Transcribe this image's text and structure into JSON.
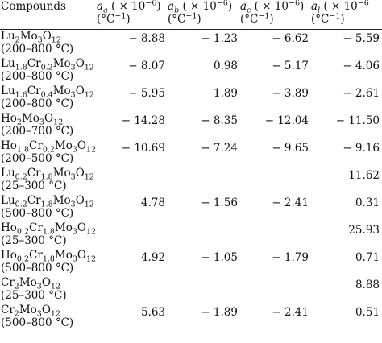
{
  "headers": [
    {
      "line1": "Compounds",
      "line2": ""
    },
    {
      "line1": "a",
      "sub": "a",
      "rest": " ( × 10",
      "exp": "−6",
      "close": ")",
      "line2": "(°C",
      "line2exp": "−1",
      "line2close": ")"
    },
    {
      "line1": "a",
      "sub": "b",
      "rest": " ( × 10",
      "exp": "−6",
      "close": ")",
      "line2": "(°C",
      "line2exp": "−1",
      "line2close": ")"
    },
    {
      "line1": "a",
      "sub": "c",
      "rest": " ( × 10",
      "exp": "−6",
      "close": ")",
      "line2": "(°C",
      "line2exp": "−1",
      "line2close": ")"
    },
    {
      "line1": "a",
      "sub": "l",
      "rest": " ( × 10",
      "exp": "−6",
      "close": "",
      "line2": "(°C",
      "line2exp": "−1",
      "line2close": ")"
    }
  ],
  "rows": [
    {
      "formula": [
        [
          "Lu",
          ""
        ],
        [
          "2",
          "sub"
        ],
        [
          "Mo",
          ""
        ],
        [
          "3",
          "sub"
        ],
        [
          "O",
          ""
        ],
        [
          "12",
          "sub"
        ]
      ],
      "range": "(200–800 °C)",
      "aa": "− 8.88",
      "ab": "− 1.23",
      "ac": "− 6.62",
      "al": "− 5.59"
    },
    {
      "formula": [
        [
          "Lu",
          ""
        ],
        [
          "1.8",
          "sub"
        ],
        [
          "Cr",
          ""
        ],
        [
          "0.2",
          "sub"
        ],
        [
          "Mo",
          ""
        ],
        [
          "3",
          "sub"
        ],
        [
          "O",
          ""
        ],
        [
          "12",
          "sub"
        ]
      ],
      "range": "(200–800 °C)",
      "aa": "− 8.07",
      "ab": "0.98",
      "ac": "− 5.17",
      "al": "− 4.06"
    },
    {
      "formula": [
        [
          "Lu",
          ""
        ],
        [
          "1.6",
          "sub"
        ],
        [
          "Cr",
          ""
        ],
        [
          "0.4",
          "sub"
        ],
        [
          "Mo",
          ""
        ],
        [
          "3",
          "sub"
        ],
        [
          "O",
          ""
        ],
        [
          "12",
          "sub"
        ]
      ],
      "range": "(200–800 °C)",
      "aa": "− 5.95",
      "ab": "1.89",
      "ac": "− 3.89",
      "al": "− 2.61"
    },
    {
      "formula": [
        [
          "Ho",
          ""
        ],
        [
          "2",
          "sub"
        ],
        [
          "Mo",
          ""
        ],
        [
          "3",
          "sub"
        ],
        [
          "O",
          ""
        ],
        [
          "12",
          "sub"
        ]
      ],
      "range": "(200–700 °C)",
      "aa": "− 14.28",
      "ab": "− 8.35",
      "ac": "− 12.04",
      "al": "− 11.50"
    },
    {
      "formula": [
        [
          "Ho",
          ""
        ],
        [
          "1.8",
          "sub"
        ],
        [
          "Cr",
          ""
        ],
        [
          "0.2",
          "sub"
        ],
        [
          "Mo",
          ""
        ],
        [
          "3",
          "sub"
        ],
        [
          "O",
          ""
        ],
        [
          "12",
          "sub"
        ]
      ],
      "range": "(200–500 °C)",
      "aa": "− 10.69",
      "ab": "− 7.24",
      "ac": "− 9.65",
      "al": "− 9.16"
    },
    {
      "formula": [
        [
          "Lu",
          ""
        ],
        [
          "0.2",
          "sub"
        ],
        [
          "Cr",
          ""
        ],
        [
          "1.8",
          "sub"
        ],
        [
          "Mo",
          ""
        ],
        [
          "3",
          "sub"
        ],
        [
          "O",
          ""
        ],
        [
          "12",
          "sub"
        ]
      ],
      "range": "(25–300 °C)",
      "aa": "",
      "ab": "",
      "ac": "",
      "al": "11.62"
    },
    {
      "formula": [
        [
          "Lu",
          ""
        ],
        [
          "0.2",
          "sub"
        ],
        [
          "Cr",
          ""
        ],
        [
          "1.8",
          "sub"
        ],
        [
          "Mo",
          ""
        ],
        [
          "3",
          "sub"
        ],
        [
          "O",
          ""
        ],
        [
          "12",
          "sub"
        ]
      ],
      "range": "(500–800 °C)",
      "aa": "4.78",
      "ab": "− 1.56",
      "ac": "− 2.41",
      "al": "0.31"
    },
    {
      "formula": [
        [
          "Ho",
          ""
        ],
        [
          "0.2",
          "sub"
        ],
        [
          "Cr",
          ""
        ],
        [
          "1.8",
          "sub"
        ],
        [
          "Mo",
          ""
        ],
        [
          "3",
          "sub"
        ],
        [
          "O",
          ""
        ],
        [
          "12",
          "sub"
        ]
      ],
      "range": "(25–300 °C)",
      "aa": "",
      "ab": "",
      "ac": "",
      "al": "25.93"
    },
    {
      "formula": [
        [
          "Ho",
          ""
        ],
        [
          "0.2",
          "sub"
        ],
        [
          "Cr",
          ""
        ],
        [
          "1.8",
          "sub"
        ],
        [
          "Mo",
          ""
        ],
        [
          "3",
          "sub"
        ],
        [
          "O",
          ""
        ],
        [
          "12",
          "sub"
        ]
      ],
      "range": "(500–800 °C)",
      "aa": "4.92",
      "ab": "− 1.05",
      "ac": "− 1.79",
      "al": "0.71"
    },
    {
      "formula": [
        [
          "Cr",
          ""
        ],
        [
          "2",
          "sub"
        ],
        [
          "Mo",
          ""
        ],
        [
          "3",
          "sub"
        ],
        [
          "O",
          ""
        ],
        [
          "12",
          "sub"
        ]
      ],
      "range": "(25–300 °C)",
      "aa": "",
      "ab": "",
      "ac": "",
      "al": "8.88"
    },
    {
      "formula": [
        [
          "Cr",
          ""
        ],
        [
          "2",
          "sub"
        ],
        [
          "Mo",
          ""
        ],
        [
          "3",
          "sub"
        ],
        [
          "O",
          ""
        ],
        [
          "12",
          "sub"
        ]
      ],
      "range": "(500–800 °C)",
      "aa": "5.63",
      "ab": "− 1.89",
      "ac": "− 2.41",
      "al": "0.51"
    }
  ]
}
